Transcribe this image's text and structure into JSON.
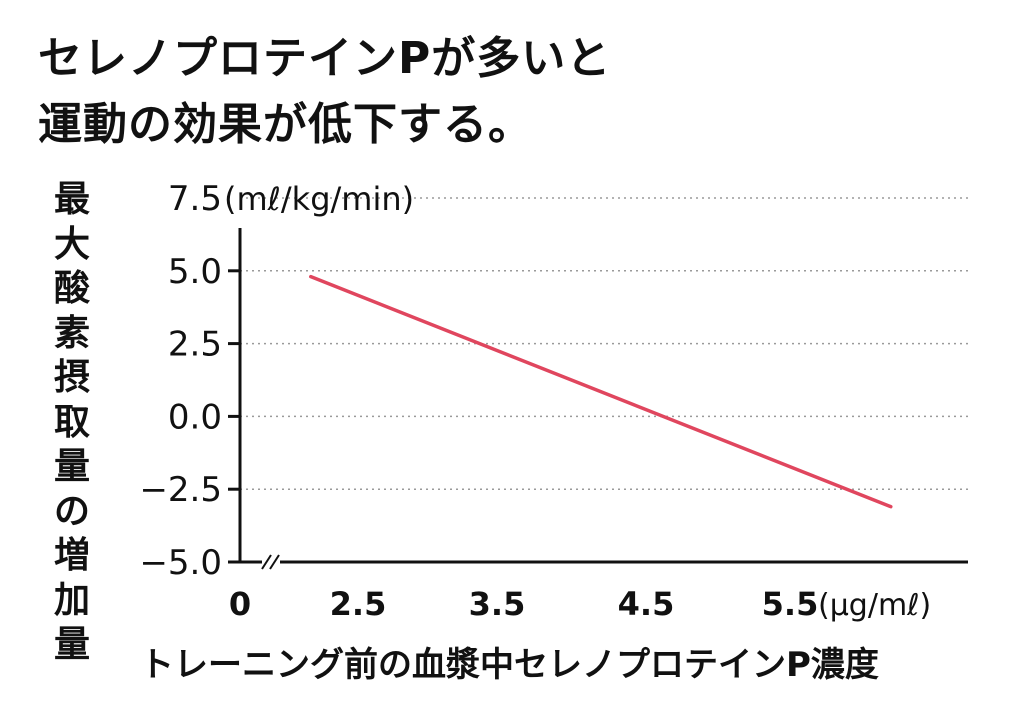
{
  "chart_data": {
    "type": "line",
    "title_lines": [
      "セレノプロテインPが多いと",
      "運動の効果が低下する。"
    ],
    "ylabel": "最大酸素摂取量の増加量",
    "xlabel": "トレーニング前の血漿中セレノプロテインP濃度",
    "y_unit": "(mℓ/kg/min)",
    "x_unit": "(μg/mℓ)",
    "y_ticks": [
      7.5,
      5.0,
      2.5,
      0.0,
      -2.5,
      -5.0
    ],
    "y_tick_labels": [
      "7.5",
      "5.0",
      "2.5",
      "0.0",
      "−2.5",
      "−5.0"
    ],
    "x_ticks": [
      0,
      2.5,
      3.5,
      4.5,
      5.5
    ],
    "x_tick_labels": [
      "0",
      "2.5",
      "3.5",
      "4.5",
      "5.5"
    ],
    "ylim": [
      -5.0,
      7.5
    ],
    "grid": true,
    "axis_break": true,
    "series": [
      {
        "x": [
          1.5,
          6.2
        ],
        "y": [
          4.8,
          -3.1
        ]
      }
    ],
    "colors": {
      "line": "#e0465e",
      "grid": "#9a9a9a",
      "axis": "#111111"
    }
  }
}
